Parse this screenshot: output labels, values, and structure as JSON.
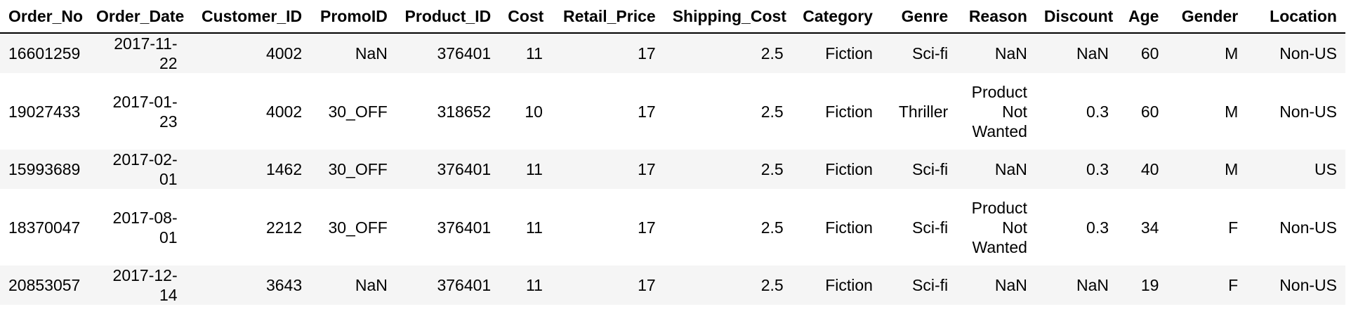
{
  "columns": [
    "Order_No",
    "Order_Date",
    "Customer_ID",
    "PromoID",
    "Product_ID",
    "Cost",
    "Retail_Price",
    "Shipping_Cost",
    "Category",
    "Genre",
    "Reason",
    "Discount",
    "Age",
    "Gender",
    "Location"
  ],
  "rows": [
    [
      "16601259",
      "2017-11-22",
      "4002",
      "NaN",
      "376401",
      "11",
      "17",
      "2.5",
      "Fiction",
      "Sci-fi",
      "NaN",
      "NaN",
      "60",
      "M",
      "Non-US"
    ],
    [
      "19027433",
      "2017-01-23",
      "4002",
      "30_OFF",
      "318652",
      "10",
      "17",
      "2.5",
      "Fiction",
      "Thriller",
      "Product Not Wanted",
      "0.3",
      "60",
      "M",
      "Non-US"
    ],
    [
      "15993689",
      "2017-02-01",
      "1462",
      "30_OFF",
      "376401",
      "11",
      "17",
      "2.5",
      "Fiction",
      "Sci-fi",
      "NaN",
      "0.3",
      "40",
      "M",
      "US"
    ],
    [
      "18370047",
      "2017-08-01",
      "2212",
      "30_OFF",
      "376401",
      "11",
      "17",
      "2.5",
      "Fiction",
      "Sci-fi",
      "Product Not Wanted",
      "0.3",
      "34",
      "F",
      "Non-US"
    ],
    [
      "20853057",
      "2017-12-14",
      "3643",
      "NaN",
      "376401",
      "11",
      "17",
      "2.5",
      "Fiction",
      "Sci-fi",
      "NaN",
      "NaN",
      "19",
      "F",
      "Non-US"
    ]
  ]
}
